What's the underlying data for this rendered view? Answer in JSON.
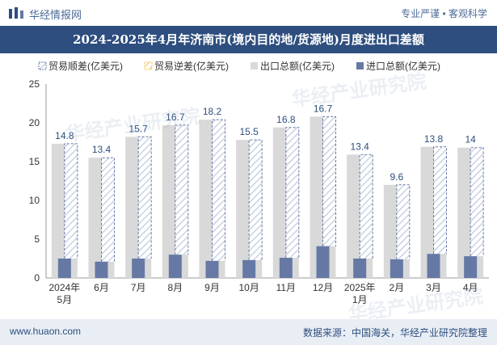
{
  "header": {
    "brand": "华经情报网",
    "tagline": "专业严谨 • 客观科学"
  },
  "footer": {
    "site": "www.huaon.com",
    "source": "数据来源：中国海关，华经产业研究院整理"
  },
  "watermarks": [
    "华经产业研究院",
    "华经产业研究院",
    "华经产业研究院"
  ],
  "colors": {
    "title_bg": "#2d4e7e",
    "export_bar": "#d9d9d9",
    "import_bar": "#6679a5",
    "surplus_hatch": "#6679a5",
    "deficit_hatch": "#f0c75e"
  },
  "chart_data": {
    "type": "bar",
    "title": "2024-2025年4月年济南市(境内目的地/货源地)月度进出口差额",
    "categories": [
      "2024年5月",
      "6月",
      "7月",
      "8月",
      "9月",
      "10月",
      "11月",
      "12月",
      "2025年1月",
      "2月",
      "3月",
      "4月"
    ],
    "legend": [
      "贸易顺差(亿美元)",
      "贸易逆差(亿美元)",
      "出口总额(亿美元)",
      "进口总额(亿美元)"
    ],
    "legend_position": "top",
    "series": [
      {
        "name": "贸易顺差(亿美元)",
        "values": [
          14.8,
          13.4,
          15.7,
          16.7,
          18.2,
          15.5,
          16.8,
          16.7,
          13.4,
          9.6,
          13.8,
          14
        ]
      },
      {
        "name": "出口总额(亿美元)",
        "values": [
          17.3,
          15.5,
          18.2,
          19.7,
          20.4,
          17.8,
          19.4,
          20.8,
          15.9,
          12.0,
          16.9,
          16.8
        ]
      },
      {
        "name": "进口总额(亿美元)",
        "values": [
          2.5,
          2.1,
          2.5,
          3.0,
          2.2,
          2.3,
          2.6,
          4.1,
          2.5,
          2.4,
          3.1,
          2.8
        ]
      }
    ],
    "y_ticks": [
      "0",
      "5",
      "10",
      "15",
      "20",
      "25"
    ],
    "ylim": [
      0,
      25
    ],
    "grid": false
  }
}
